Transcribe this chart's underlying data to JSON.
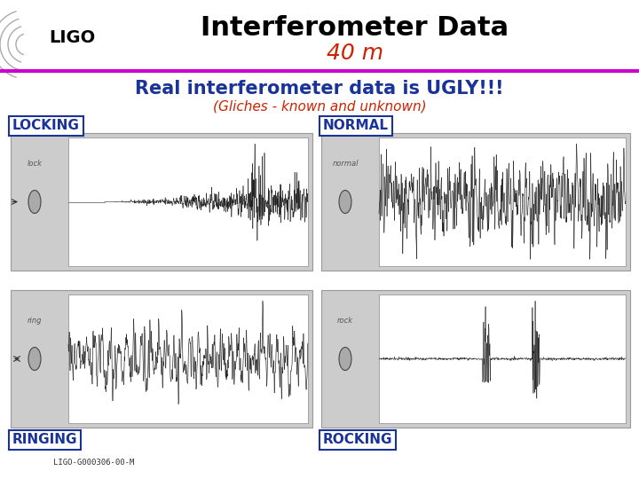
{
  "title": "Interferometer Data",
  "subtitle": "40 m",
  "main_text": "Real interferometer data is UGLY!!!",
  "sub_text": "(Gliches - known and unknown)",
  "labels": [
    "LOCKING",
    "NORMAL",
    "RINGING",
    "ROCKING"
  ],
  "footer": "LIGO-G000306-00-M",
  "title_color": "#000000",
  "subtitle_color": "#cc2200",
  "main_text_color": "#1a3399",
  "sub_text_color": "#cc2200",
  "label_color": "#1a3399",
  "bg_color": "#ffffff",
  "divider_color": "#cc00cc",
  "panel_bg": "#cccccc",
  "panel_inner_bg": "#e8e8e8",
  "ligo_arc_color": "#aaaaaa"
}
